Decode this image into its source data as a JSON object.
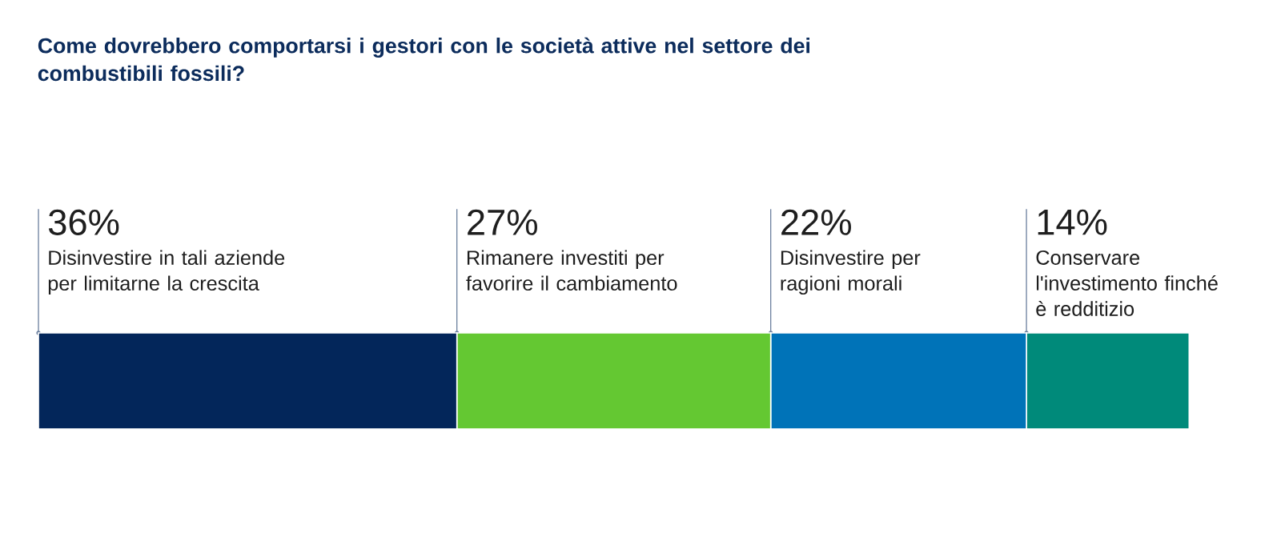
{
  "chart_data": {
    "type": "bar",
    "orientation": "horizontal",
    "stacked": true,
    "title": "Come dovrebbero comportarsi i gestori con le società attive nel settore dei combustibili fossili?",
    "categories": [
      null
    ],
    "series": [
      {
        "name": "Disinvestire in tali aziende per limitarne la crescita",
        "color": "#03265a",
        "values": [
          36
        ],
        "value_labels": [
          "36%"
        ]
      },
      {
        "name": "Rimanere investiti per favorire il cambiamento",
        "color": "#64c832",
        "values": [
          27
        ],
        "value_labels": [
          "27%"
        ]
      },
      {
        "name": "Disinvestire per ragioni morali",
        "color": "#0073b8",
        "values": [
          22
        ],
        "value_labels": [
          "22%"
        ]
      },
      {
        "name": "Conservare l'investimento finché è redditizio",
        "color": "#008a7a",
        "values": [
          14
        ],
        "value_labels": [
          "14%"
        ]
      }
    ]
  }
}
